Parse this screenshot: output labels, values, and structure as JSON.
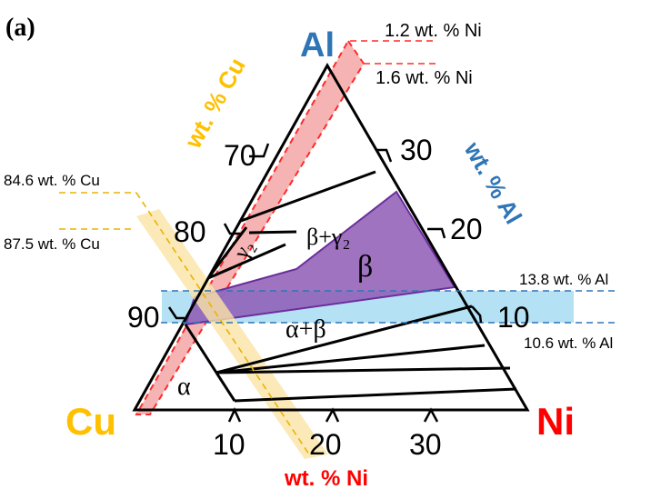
{
  "panel_label": "(a)",
  "vertices": {
    "top": "Al",
    "left": "Cu",
    "right": "Ni"
  },
  "axes": {
    "cu_axis_title": "wt. % Cu",
    "al_axis_title": "wt. % Al",
    "ni_axis_title": "wt. % Ni",
    "cu_ticks": [
      "70",
      "80",
      "90"
    ],
    "al_ticks": [
      "30",
      "20",
      "10"
    ],
    "ni_ticks": [
      "10",
      "20",
      "30"
    ]
  },
  "phases": {
    "alpha": "α",
    "alpha_beta": "α+β",
    "beta": "β",
    "beta_gamma2": "β+γ₂",
    "gamma2": "γ₂"
  },
  "annotations": {
    "ni_low": "1.2 wt. % Ni",
    "ni_high": "1.6 wt. % Ni",
    "cu_high": "84.6 wt. % Cu",
    "cu_low": "87.5 wt. % Cu",
    "al_high": "13.8 wt. % Al",
    "al_low": "10.6 wt. % Al"
  },
  "colors": {
    "al": "#2e75b6",
    "cu": "#ffc000",
    "ni": "#ff0000",
    "beta_fill": "#8e5bb5",
    "al_band": "#a8dcf2",
    "cu_band": "#fbe3a6",
    "ni_band": "#f4a6a6"
  }
}
